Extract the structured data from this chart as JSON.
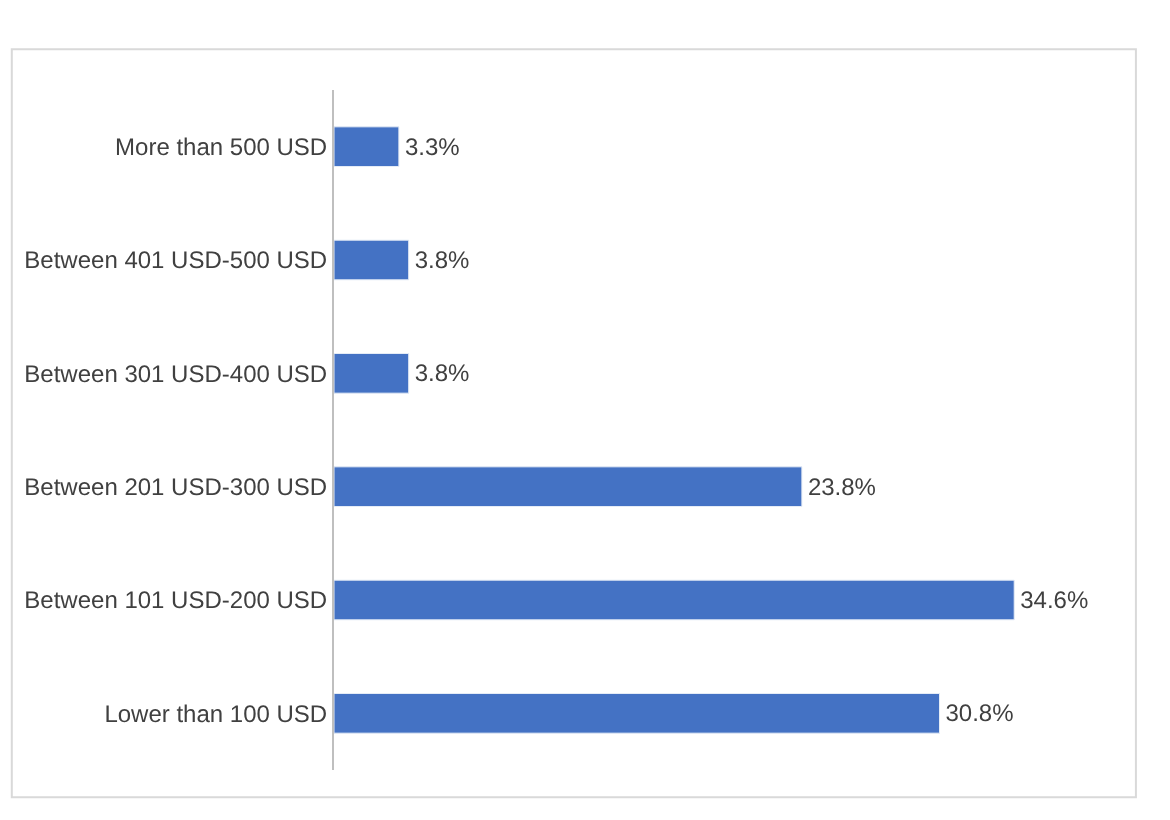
{
  "chart_data": {
    "type": "bar",
    "orientation": "horizontal",
    "categories": [
      "More than 500 USD",
      "Between 401 USD-500 USD",
      "Between 301 USD-400 USD",
      "Between 201 USD-300 USD",
      "Between 101 USD-200 USD",
      "Lower than 100 USD"
    ],
    "values": [
      3.3,
      3.8,
      3.8,
      23.8,
      34.6,
      30.8
    ],
    "value_labels": [
      "3.3%",
      "3.8%",
      "3.8%",
      "23.8%",
      "34.6%",
      "30.8%"
    ],
    "color": "#4472c4"
  }
}
